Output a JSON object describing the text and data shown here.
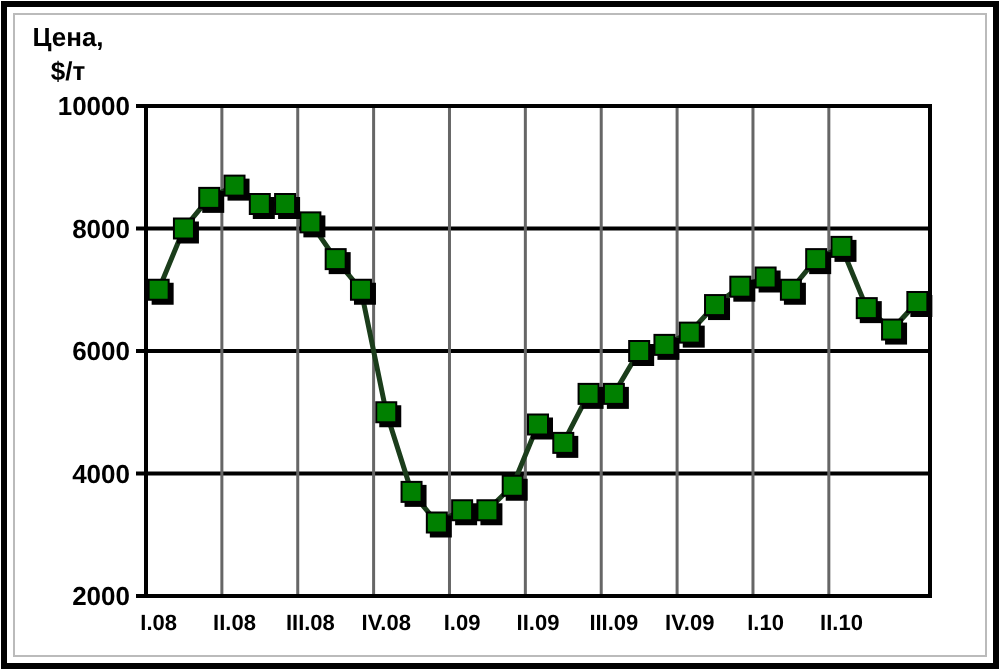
{
  "chart_data": {
    "type": "line",
    "ylabel": "Цена, $/т",
    "categories": [
      "I.08",
      null,
      null,
      "II.08",
      null,
      null,
      "III.08",
      null,
      null,
      "IV.08",
      null,
      null,
      "I.09",
      null,
      null,
      "II.09",
      null,
      null,
      "III.09",
      null,
      null,
      "IV.09",
      null,
      null,
      "I.10",
      null,
      null,
      "II.10",
      null,
      null,
      null
    ],
    "series": [
      {
        "color": "#008000",
        "values": [
          7000,
          8000,
          8500,
          8700,
          8400,
          8400,
          8100,
          7500,
          7000,
          5000,
          3700,
          3200,
          3400,
          3400,
          3800,
          4800,
          4500,
          5300,
          5300,
          6000,
          6100,
          6300,
          6750,
          7050,
          7200,
          7000,
          7500,
          7700,
          6700,
          6350,
          6800
        ]
      }
    ],
    "ylim": [
      2000,
      10000
    ],
    "yticks": [
      2000,
      4000,
      6000,
      8000,
      10000
    ],
    "grid": true,
    "marker": "square",
    "line_style": "solid"
  }
}
